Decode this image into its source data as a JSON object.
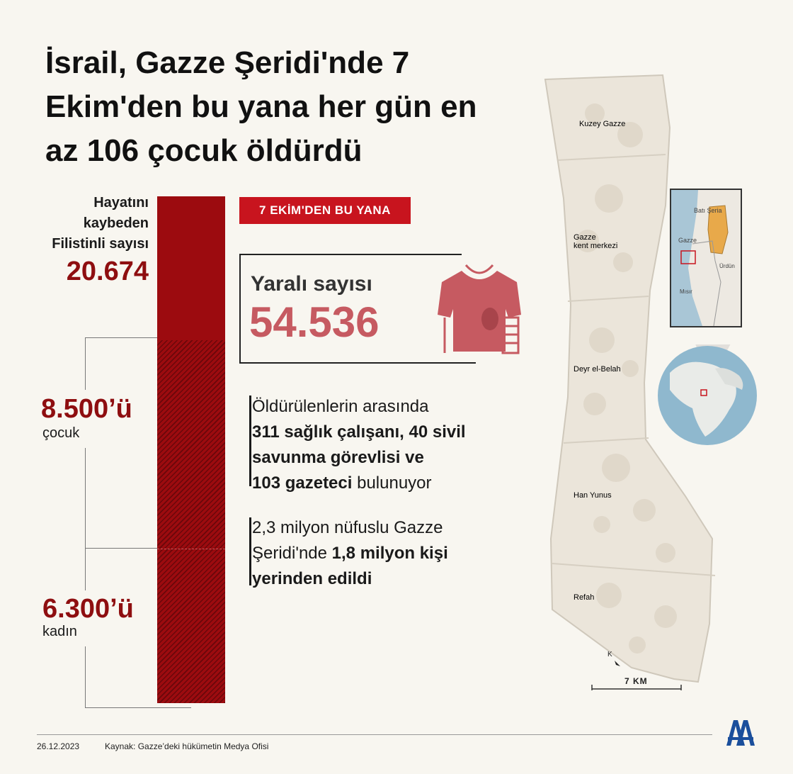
{
  "title": "İsrail, Gazze Şeridi'nde 7 Ekim'den bu yana her gün en az 106 çocuk öldürdü",
  "killed": {
    "label": "Hayatını kaybeden Filistinli sayısı",
    "value": "20.674"
  },
  "children": {
    "value": "8.500’ü",
    "label": "çocuk"
  },
  "women": {
    "value": "6.300’ü",
    "label": "kadın"
  },
  "bar": {
    "total": 20674,
    "children": 8500,
    "women": 6300
  },
  "badge": "7 EKİM'DEN  BU YANA",
  "wounded": {
    "label": "Yaralı sayısı",
    "value": "54.536"
  },
  "block1": {
    "l1": "Öldürülenlerin arasında",
    "l2": "311 sağlık çalışanı, 40 sivil",
    "l3": "savunma görevlisi ve",
    "l4_bold": "103 gazeteci",
    "l4_rest": " bulunuyor"
  },
  "block2": {
    "l1": "2,3 milyon nüfuslu Gazze",
    "l2_plain": "Şeridi'nde ",
    "l2_bold": "1,8 milyon kişi",
    "l3": "yerinden edildi"
  },
  "map": {
    "regions": [
      "Kuzey Gazze",
      "Gazze",
      "kent merkezi",
      "Deyr el-Belah",
      "Han Yunus",
      "Refah"
    ],
    "inset": [
      "Batı Şeria",
      "Gazze",
      "Ürdün",
      "Mısır"
    ],
    "scale": "7 KM",
    "colors": {
      "land": "#ebe5da",
      "border": "#cfc8bb",
      "accent": "#c8141e",
      "westbank": "#e8a94a",
      "sea": "#a9c6d6"
    }
  },
  "footer": {
    "date": "26.12.2023",
    "source": "Kaynak: Gazze’deki hükümetin Medya Ofisi"
  },
  "colors": {
    "darkred": "#9c0b0f",
    "red": "#c8141e",
    "pink": "#c65a61",
    "bg": "#f8f6f0"
  }
}
